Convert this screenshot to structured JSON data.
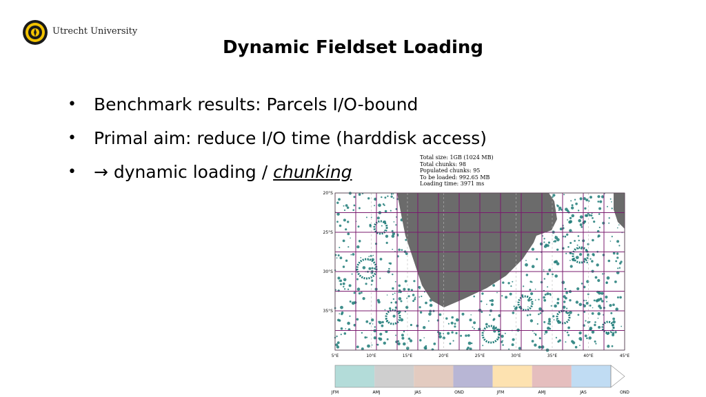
{
  "logo": {
    "text": "Utrecht University"
  },
  "slide": {
    "title": "Dynamic Fieldset Loading",
    "bullets": [
      {
        "symbol": "•",
        "text": "Benchmark results: Parcels I/O-bound"
      },
      {
        "symbol": "•",
        "text": "Primal aim: reduce I/O time (harddisk access)"
      },
      {
        "symbol": "•",
        "prefix": "→ dynamic loading / ",
        "emphasis": "chunking"
      }
    ]
  },
  "figure": {
    "stats": [
      "Total size: 1GB (1024 MB)",
      "Total chunks: 98",
      "Populated chunks: 95",
      "To be loaded: 992.65 MB",
      "Loading time: 3971 ms"
    ],
    "lat_ticks": [
      "20°S",
      "25°S",
      "30°S",
      "35°S"
    ],
    "lon_ticks": [
      "5°E",
      "10°E",
      "15°E",
      "20°E",
      "25°E",
      "30°E",
      "35°E",
      "40°E",
      "45°E"
    ],
    "colorbar": {
      "labels": [
        "JFM",
        "AMJ",
        "JAS",
        "OND",
        "JFM",
        "AMJ",
        "JAS",
        "OND"
      ],
      "colors": [
        "#b3dcd9",
        "#cfcfcf",
        "#e3cbc0",
        "#b8b6d5",
        "#fde2b0",
        "#e5bebe",
        "#c0dcf3"
      ]
    },
    "colors": {
      "land": "#6b6b6b",
      "particles": "#1f7b78",
      "grid": "#7a1a6e"
    }
  }
}
